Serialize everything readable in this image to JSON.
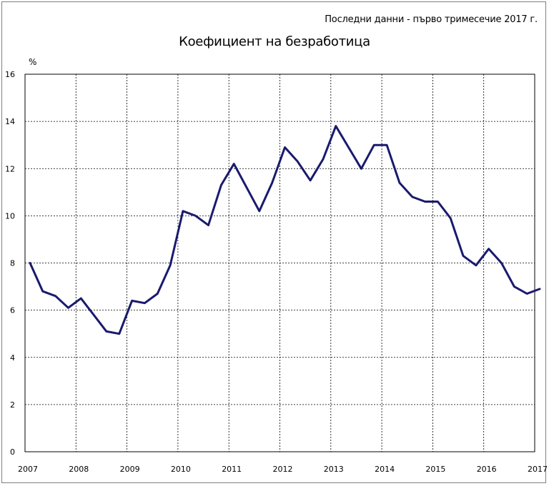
{
  "header": {
    "note": "Последни данни - първо тримесечие 2017 г."
  },
  "chart_data": {
    "type": "line",
    "title": "Коефициент на безработица",
    "ylabel": "%",
    "xlabel": "",
    "ylim": [
      0,
      16
    ],
    "yticks": [
      0,
      2,
      4,
      6,
      8,
      10,
      12,
      14,
      16
    ],
    "xticks": [
      "2007",
      "2008",
      "2009",
      "2010",
      "2011",
      "2012",
      "2013",
      "2014",
      "2015",
      "2016",
      "2017"
    ],
    "grid": true,
    "line_color": "#1a1a6e",
    "series": [
      {
        "x": [
          "2007 Q1",
          "2007 Q2",
          "2007 Q3",
          "2007 Q4",
          "2008 Q1",
          "2008 Q2",
          "2008 Q3",
          "2008 Q4",
          "2009 Q1",
          "2009 Q2",
          "2009 Q3",
          "2009 Q4",
          "2010 Q1",
          "2010 Q2",
          "2010 Q3",
          "2010 Q4",
          "2011 Q1",
          "2011 Q2",
          "2011 Q3",
          "2011 Q4",
          "2012 Q1",
          "2012 Q2",
          "2012 Q3",
          "2012 Q4",
          "2013 Q1",
          "2013 Q2",
          "2013 Q3",
          "2013 Q4",
          "2014 Q1",
          "2014 Q2",
          "2014 Q3",
          "2014 Q4",
          "2015 Q1",
          "2015 Q2",
          "2015 Q3",
          "2015 Q4",
          "2016 Q1",
          "2016 Q2",
          "2016 Q3",
          "2016 Q4",
          "2017 Q1"
        ],
        "values": [
          8.0,
          6.8,
          6.6,
          6.1,
          6.5,
          5.8,
          5.1,
          5.0,
          6.4,
          6.3,
          6.7,
          7.9,
          10.2,
          10.0,
          9.6,
          11.3,
          12.2,
          11.2,
          10.2,
          11.4,
          12.9,
          12.3,
          11.5,
          12.4,
          13.8,
          12.9,
          12.0,
          13.0,
          13.0,
          11.4,
          10.8,
          10.6,
          10.6,
          9.9,
          8.3,
          7.9,
          8.6,
          8.0,
          7.0,
          6.7,
          6.9
        ]
      }
    ]
  }
}
